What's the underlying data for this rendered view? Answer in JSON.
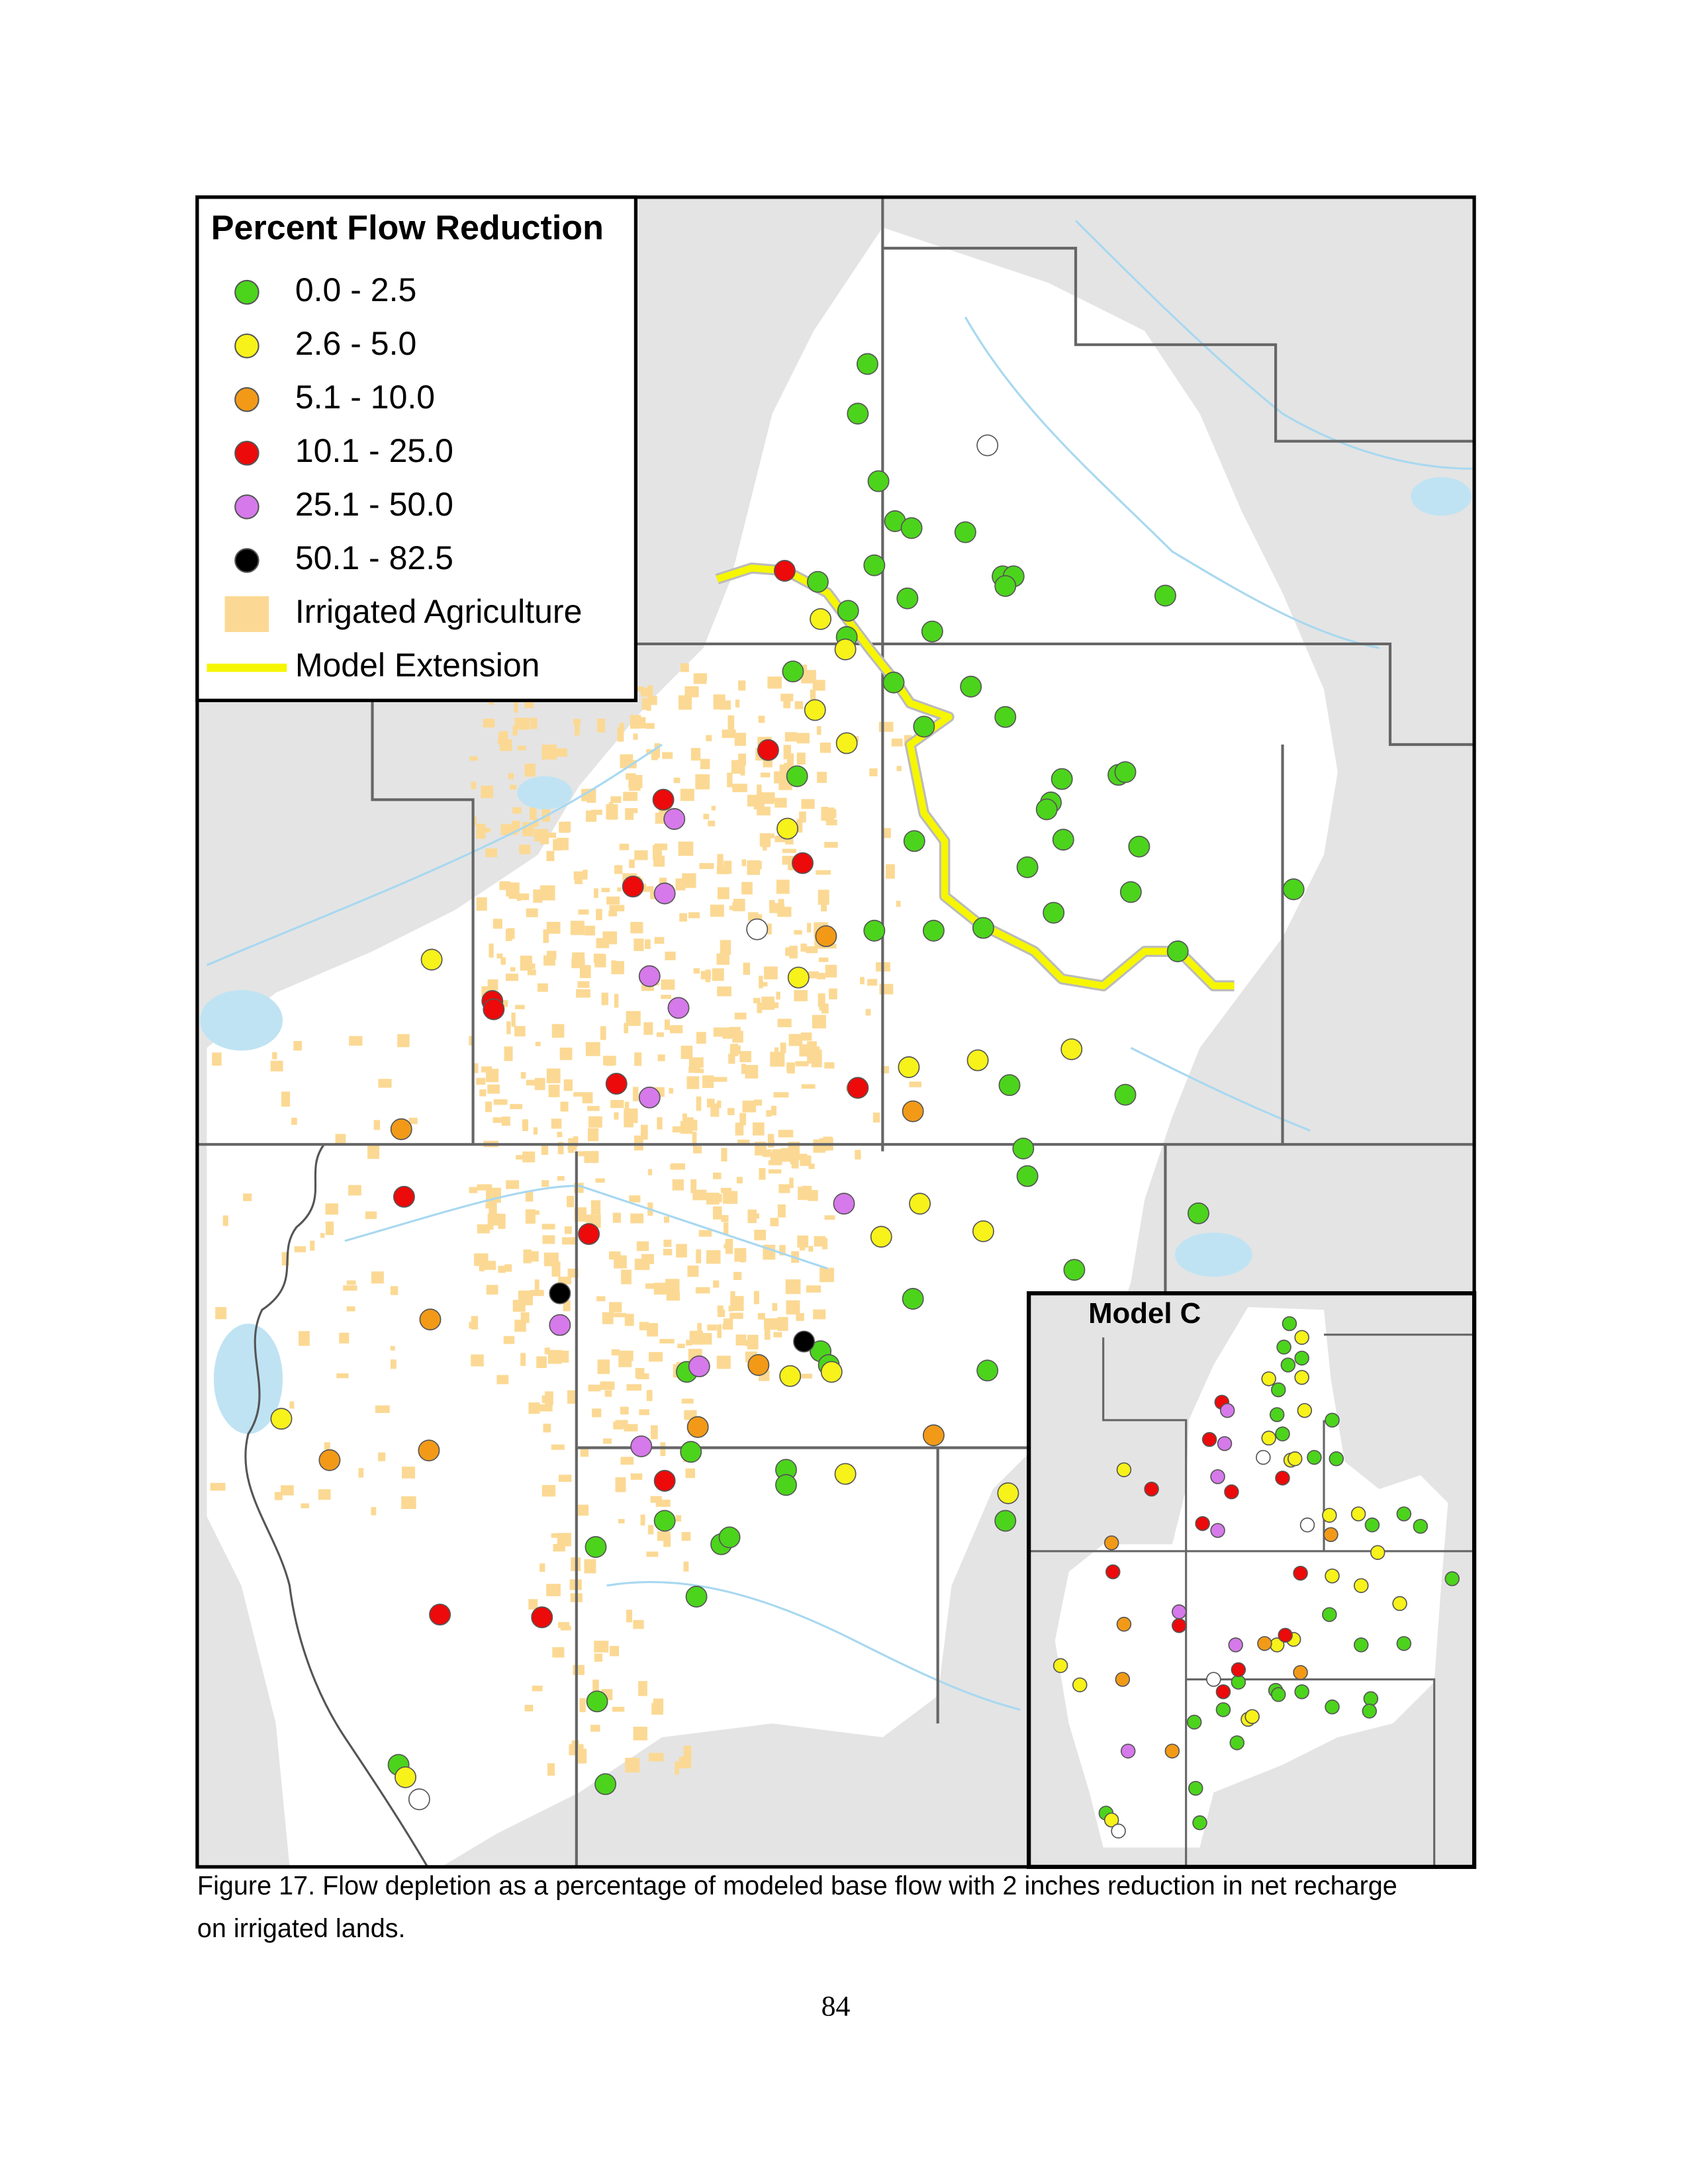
{
  "legend": {
    "title": "Percent Flow Reduction",
    "items": [
      {
        "label": "0.0 - 2.5",
        "color": "#4cd41c"
      },
      {
        "label": "2.6 - 5.0",
        "color": "#f7f21a"
      },
      {
        "label": "5.1 - 10.0",
        "color": "#f29a18"
      },
      {
        "label": "10.1 - 25.0",
        "color": "#ec0a0a"
      },
      {
        "label": "25.1 - 50.0",
        "color": "#d679ea"
      },
      {
        "label": "50.1 - 82.5",
        "color": "#000000"
      },
      {
        "label": "Irrigated Agriculture",
        "color": "#fbd994"
      },
      {
        "label": "Model Extension",
        "color": "#f6f600"
      }
    ]
  },
  "inset": {
    "title": "Model C"
  },
  "caption": {
    "lines": [
      "Figure 17.  Flow depletion as a percentage of modeled base flow with 2 inches reduction in net recharge",
      "on irrigated lands."
    ]
  },
  "page_number": "84"
}
